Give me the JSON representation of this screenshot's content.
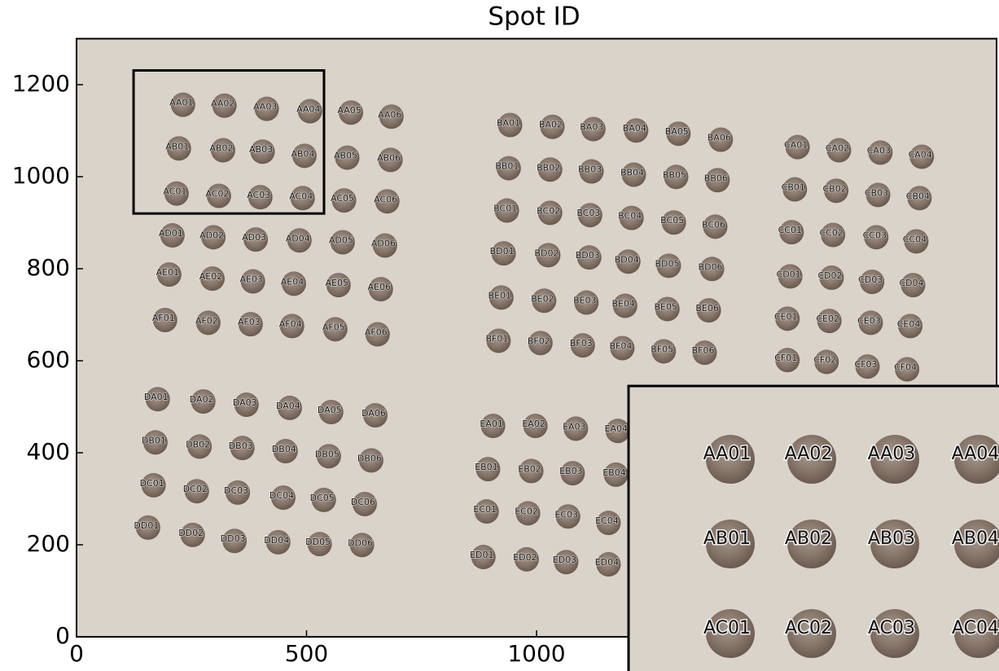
{
  "chart_data": {
    "type": "scatter",
    "title": "Spot ID",
    "xlim": [
      0,
      2000
    ],
    "ylim": [
      0,
      1300
    ],
    "xticks": [
      0,
      500,
      1000
    ],
    "yticks": [
      0,
      200,
      400,
      600,
      800,
      1000,
      1200
    ],
    "series": [
      {
        "labels": [
          "AA01",
          "AA02",
          "AA03",
          "AA04",
          "AA05",
          "AA06",
          "AB01",
          "AB02",
          "AB03",
          "AB04",
          "AB05",
          "AB06",
          "AC01",
          "AC02",
          "AC03",
          "AC04",
          "AC05",
          "AC06",
          "AD01",
          "AD02",
          "AD03",
          "AD04",
          "AD05",
          "AD06",
          "AE01",
          "AE02",
          "AE03",
          "AE04",
          "AE05",
          "AE06",
          "AF01",
          "AF02",
          "AF03",
          "AF04",
          "AF05",
          "AF06"
        ],
        "x": [
          228,
          318,
          410,
          504,
          593,
          681,
          219,
          315,
          401,
          492,
          585,
          679,
          214,
          306,
          396,
          488,
          578,
          672,
          205,
          294,
          386,
          481,
          575,
          667,
          198,
          292,
          380,
          469,
          566,
          658,
          189,
          283,
          375,
          465,
          559,
          651
        ],
        "y": [
          1160,
          1158,
          1151,
          1146,
          1143,
          1134,
          1065,
          1061,
          1058,
          1049,
          1045,
          1040,
          967,
          962,
          959,
          957,
          952,
          950,
          876,
          872,
          867,
          865,
          861,
          854,
          791,
          782,
          776,
          771,
          768,
          759,
          692,
          686,
          683,
          679,
          672,
          661
        ]
      },
      {
        "labels": [
          "BA01",
          "BA02",
          "BA03",
          "BA04",
          "BA05",
          "BA06",
          "BB01",
          "BB02",
          "BB03",
          "BB04",
          "BB05",
          "BB06",
          "BC01",
          "BC02",
          "BC03",
          "BC04",
          "BC05",
          "BC06",
          "BD01",
          "BD02",
          "BD03",
          "BD04",
          "BD05",
          "BD06",
          "BE01",
          "BE02",
          "BE03",
          "BE04",
          "BE05",
          "BE06",
          "BF01",
          "BF02",
          "BF03",
          "BF04",
          "BF05",
          "BF06"
        ],
        "x": [
          939,
          1031,
          1120,
          1213,
          1305,
          1397,
          936,
          1026,
          1116,
          1208,
          1300,
          1390,
          932,
          1026,
          1113,
          1203,
          1295,
          1385,
          925,
          1022,
          1111,
          1196,
          1284,
          1378,
          920,
          1013,
          1105,
          1189,
          1281,
          1371,
          914,
          1005,
          1097,
          1183,
          1273,
          1362
        ],
        "y": [
          1116,
          1112,
          1107,
          1104,
          1097,
          1084,
          1022,
          1019,
          1015,
          1008,
          1003,
          996,
          930,
          925,
          920,
          914,
          904,
          895,
          837,
          833,
          828,
          819,
          810,
          803,
          741,
          734,
          730,
          723,
          716,
          713,
          647,
          642,
          637,
          631,
          624,
          621
        ]
      },
      {
        "labels": [
          "CA01",
          "CA02",
          "CA03",
          "CA04",
          "CB01",
          "CB02",
          "CB03",
          "CB04",
          "CC01",
          "CC02",
          "CC03",
          "CC04",
          "CD01",
          "CD02",
          "CD03",
          "CD04",
          "CE01",
          "CE02",
          "CE03",
          "CE04",
          "CF01",
          "CF02",
          "CF03",
          "CF04"
        ],
        "x": [
          1564,
          1654,
          1744,
          1834,
          1558,
          1648,
          1739,
          1829,
          1551,
          1641,
          1735,
          1822,
          1548,
          1638,
          1726,
          1815,
          1542,
          1633,
          1723,
          1809,
          1542,
          1627,
          1716,
          1802
        ],
        "y": [
          1068,
          1061,
          1056,
          1047,
          976,
          973,
          964,
          957,
          883,
          877,
          872,
          863,
          787,
          784,
          775,
          768,
          695,
          690,
          686,
          679,
          605,
          601,
          591,
          585
        ]
      },
      {
        "labels": [
          "DA01",
          "DA02",
          "DA03",
          "DA04",
          "DA05",
          "DA06",
          "DB01",
          "DB02",
          "DB03",
          "DB04",
          "DB05",
          "DB06",
          "DC01",
          "DC02",
          "DC03",
          "DC04",
          "DC05",
          "DC06",
          "DD01",
          "DD02",
          "DD03",
          "DD04",
          "DD05",
          "DD06"
        ],
        "x": [
          173,
          272,
          366,
          460,
          550,
          646,
          168,
          264,
          357,
          451,
          545,
          637,
          164,
          258,
          347,
          446,
          534,
          623,
          152,
          249,
          340,
          435,
          525,
          617
        ],
        "y": [
          520,
          515,
          508,
          501,
          492,
          485,
          426,
          417,
          414,
          407,
          396,
          387,
          333,
          320,
          317,
          306,
          301,
          292,
          241,
          225,
          212,
          209,
          205,
          203
        ]
      },
      {
        "labels": [
          "EA01",
          "EA02",
          "EA03",
          "EA04",
          "EB01",
          "EB02",
          "EB03",
          "EB04",
          "EC01",
          "EC02",
          "EC03",
          "EC04",
          "ED01",
          "ED02",
          "ED03",
          "ED04"
        ],
        "x": [
          902,
          994,
          1082,
          1173,
          891,
          985,
          1075,
          1169,
          888,
          978,
          1065,
          1153,
          881,
          975,
          1061,
          1153
        ],
        "y": [
          462,
          462,
          456,
          451,
          368,
          364,
          359,
          356,
          276,
          272,
          265,
          251,
          177,
          172,
          166,
          161
        ]
      }
    ],
    "zoom_box": {
      "x": [
        124,
        538
      ],
      "y": [
        920,
        1231
      ]
    },
    "inset": {
      "labels": [
        "AA01",
        "AA02",
        "AA03",
        "AA04",
        "AB01",
        "AB02",
        "AB03",
        "AB04",
        "AC01",
        "AC02",
        "AC03",
        "AC04"
      ]
    }
  }
}
